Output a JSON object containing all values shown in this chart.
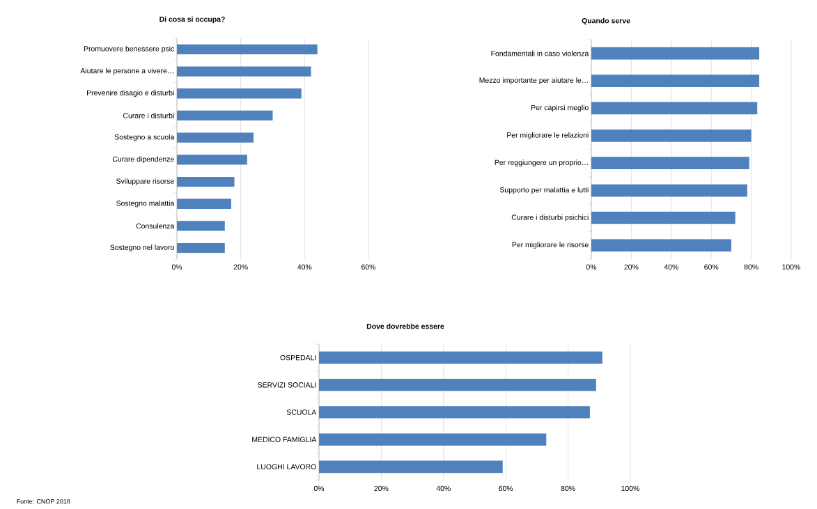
{
  "chart_data": [
    {
      "type": "bar",
      "orientation": "horizontal",
      "title": "Di cosa si occupa?",
      "categories": [
        "Promuovere benessere psic",
        "Aiutare le persone a vivere…",
        "Prevenire disagio e disturbi",
        "Curare i disturbi",
        "Sostegno a scuola",
        "Curare dipendenze",
        "Sviluppare risorse",
        "Sostegno malattia",
        "Consulenza",
        "Sostegno nel lavoro"
      ],
      "values": [
        44,
        42,
        39,
        30,
        24,
        22,
        18,
        17,
        15,
        15
      ],
      "color": "#4f81bd",
      "xlim": [
        0,
        60
      ],
      "xticks": [
        {
          "value": 0,
          "label": "0%"
        },
        {
          "value": 20,
          "label": "20%"
        },
        {
          "value": 40,
          "label": "40%"
        },
        {
          "value": 60,
          "label": "60%"
        }
      ],
      "grid": "x"
    },
    {
      "type": "bar",
      "orientation": "horizontal",
      "title": "Quando serve",
      "categories": [
        "Fondamentali in caso violenza",
        "Mezzo importante per aiutare le…",
        "Per capirsi meglio",
        "Per migliorare le relazioni",
        "Per reggiungere un proprio…",
        "Supporto per malattia e lutti",
        "Curare i disturbi psichici",
        "Per migliorare le risorse"
      ],
      "values": [
        84,
        84,
        83,
        80,
        79,
        78,
        72,
        70
      ],
      "color": "#4f81bd",
      "xlim": [
        0,
        100
      ],
      "xticks": [
        {
          "value": 0,
          "label": "0%"
        },
        {
          "value": 20,
          "label": "20%"
        },
        {
          "value": 40,
          "label": "40%"
        },
        {
          "value": 60,
          "label": "60%"
        },
        {
          "value": 80,
          "label": "80%"
        },
        {
          "value": 100,
          "label": "100%"
        }
      ],
      "grid": "x"
    },
    {
      "type": "bar",
      "orientation": "horizontal",
      "title": "Dove dovrebbe essere",
      "categories": [
        "OSPEDALI",
        "SERVIZI SOCIALI",
        "SCUOLA",
        "MEDICO FAMIGLIA",
        "LUOGHI LAVORO"
      ],
      "values": [
        91,
        89,
        87,
        73,
        59
      ],
      "color": "#4f81bd",
      "xlim": [
        0,
        100
      ],
      "xticks": [
        {
          "value": 0,
          "label": "0%"
        },
        {
          "value": 20,
          "label": "20%"
        },
        {
          "value": 40,
          "label": "40%"
        },
        {
          "value": 60,
          "label": "60%"
        },
        {
          "value": 80,
          "label": "80%"
        },
        {
          "value": 100,
          "label": "100%"
        }
      ],
      "grid": "x",
      "annotations": [
        "Fonte: CNOP 2018"
      ]
    }
  ]
}
